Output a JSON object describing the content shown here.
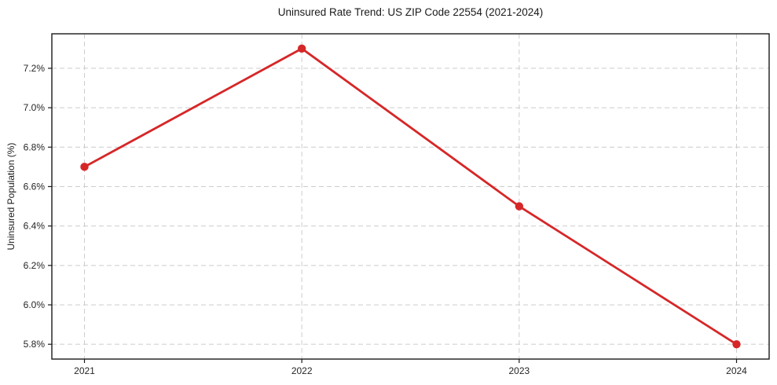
{
  "title": "Uninsured Rate Trend: US ZIP Code 22554 (2021-2024)",
  "chart_data": {
    "type": "line",
    "title": "Uninsured Rate Trend: US ZIP Code 22554 (2021-2024)",
    "xlabel": "",
    "ylabel": "Uninsured Population (%)",
    "x": [
      2021,
      2022,
      2023,
      2024
    ],
    "values": [
      6.7,
      7.3,
      6.5,
      5.8
    ],
    "x_tick_labels": [
      "2021",
      "2022",
      "2023",
      "2024"
    ],
    "x_tick_values": [
      2021,
      2022,
      2023,
      2024
    ],
    "y_tick_labels": [
      "5.8%",
      "6.0%",
      "6.2%",
      "6.4%",
      "6.6%",
      "6.8%",
      "7.0%",
      "7.2%"
    ],
    "y_tick_values": [
      5.8,
      6.0,
      6.2,
      6.4,
      6.6,
      6.8,
      7.0,
      7.2
    ],
    "xlim": [
      2020.85,
      2024.15
    ],
    "ylim": [
      5.725,
      7.375
    ],
    "grid": true,
    "grid_style": "dashed",
    "legend": false,
    "line_color": "#d62728",
    "marker": "circle",
    "marker_color": "#d62728",
    "grid_color": "#cccccc",
    "spine_color": "#1a1a1a",
    "tick_label_color": "#262626"
  }
}
